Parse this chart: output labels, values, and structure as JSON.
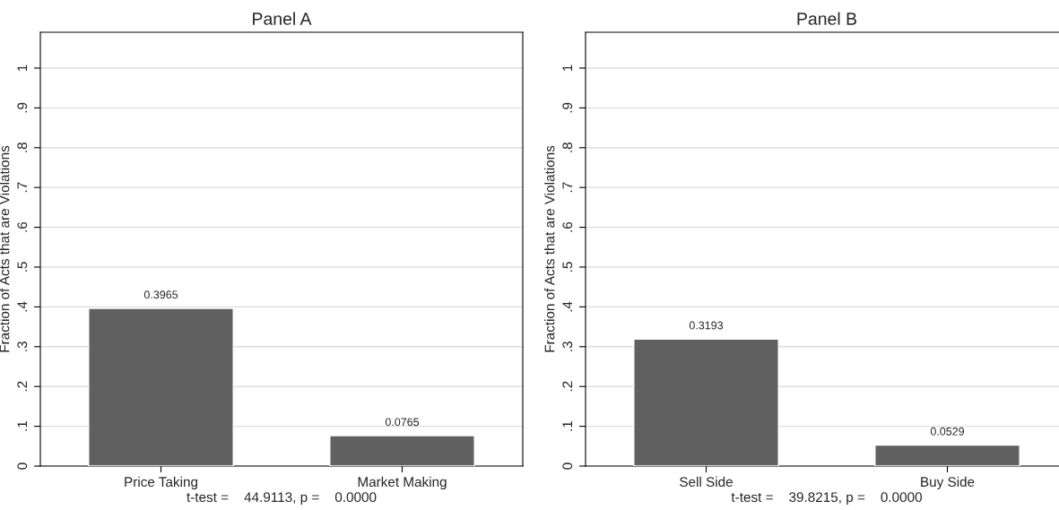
{
  "chart_data": [
    {
      "type": "bar",
      "title": "Panel A",
      "ylabel": "Fraction of Acts that are Violations",
      "xlabel": "t-test =    44.9113, p =    0.0000",
      "categories": [
        "Price Taking",
        "Market Making"
      ],
      "values": [
        0.3965,
        0.0765
      ],
      "color": "#606060",
      "ylim": [
        0,
        1.09
      ],
      "yticks": [
        {
          "value": 0,
          "label": "0"
        },
        {
          "value": 0.1,
          "label": ".1"
        },
        {
          "value": 0.2,
          "label": ".2"
        },
        {
          "value": 0.3,
          "label": ".3"
        },
        {
          "value": 0.4,
          "label": ".4"
        },
        {
          "value": 0.5,
          "label": ".5"
        },
        {
          "value": 0.6,
          "label": ".6"
        },
        {
          "value": 0.7,
          "label": ".7"
        },
        {
          "value": 0.8,
          "label": ".8"
        },
        {
          "value": 0.9,
          "label": ".9"
        },
        1
      ],
      "grid": "y",
      "data_labels": true
    },
    {
      "type": "bar",
      "title": "Panel B",
      "ylabel": "Fraction of Acts that are Violations",
      "xlabel": "t-test =    39.8215, p =    0.0000",
      "categories": [
        "Sell Side",
        "Buy Side"
      ],
      "values": [
        0.3193,
        0.0529
      ],
      "color": "#606060",
      "ylim": [
        0,
        1.09
      ],
      "yticks": [
        {
          "value": 0,
          "label": "0"
        },
        {
          "value": 0.1,
          "label": ".1"
        },
        {
          "value": 0.2,
          "label": ".2"
        },
        {
          "value": 0.3,
          "label": ".3"
        },
        {
          "value": 0.4,
          "label": ".4"
        },
        {
          "value": 0.5,
          "label": ".5"
        },
        {
          "value": 0.6,
          "label": ".6"
        },
        {
          "value": 0.7,
          "label": ".7"
        },
        {
          "value": 0.8,
          "label": ".8"
        },
        {
          "value": 0.9,
          "label": ".9"
        },
        1
      ],
      "grid": "y",
      "data_labels": true
    }
  ]
}
